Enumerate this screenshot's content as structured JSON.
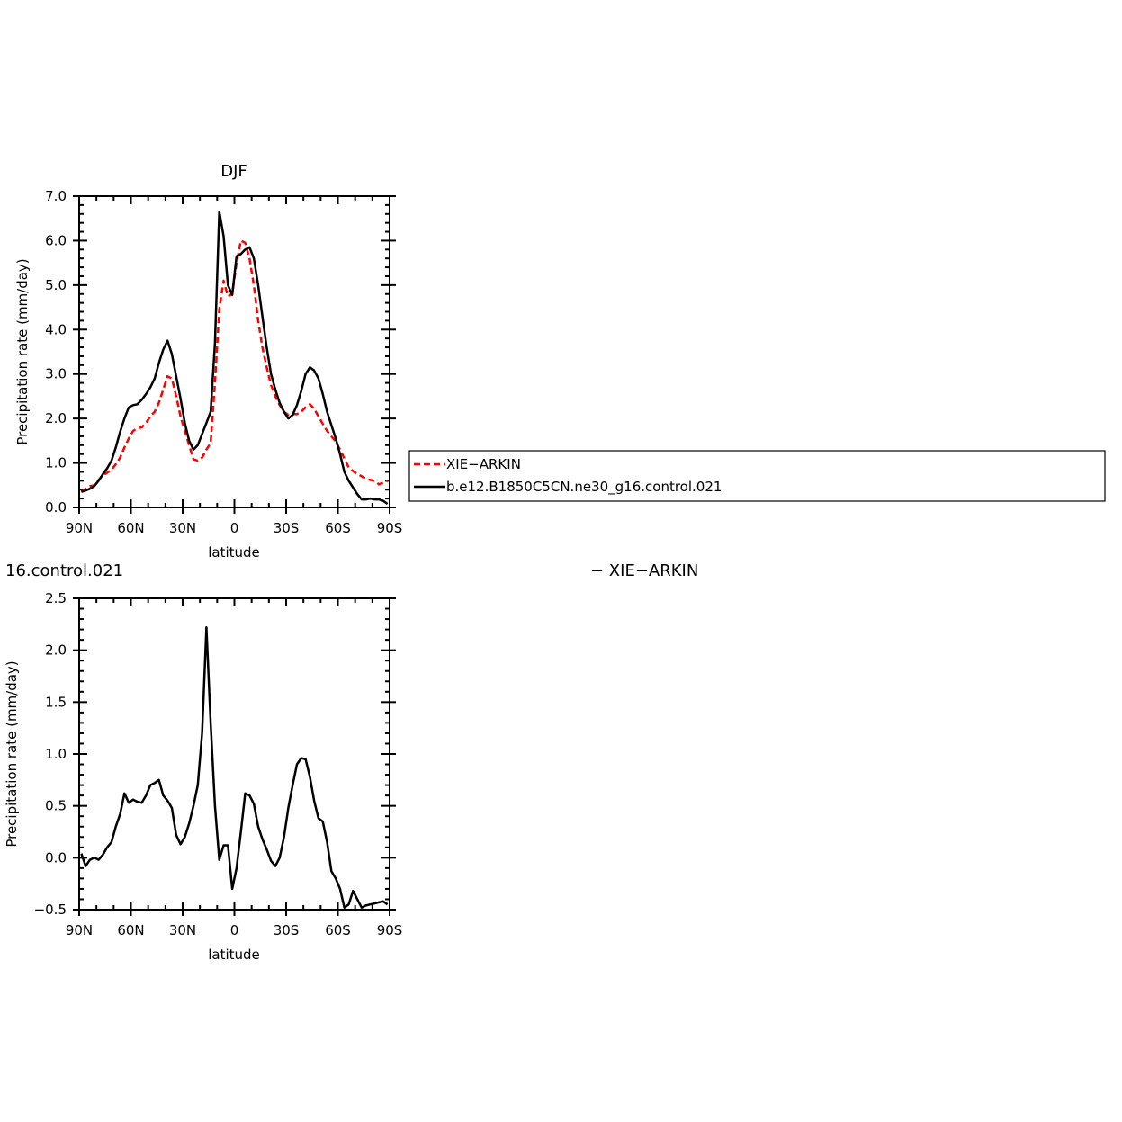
{
  "chart_data": [
    {
      "type": "line",
      "title": "DJF",
      "xlabel": "latitude",
      "ylabel": "Precipitation rate (mm/day)",
      "xlim": [
        -90,
        90
      ],
      "ylim": [
        0,
        7
      ],
      "x_ticks": [
        -90,
        -60,
        -30,
        0,
        30,
        60,
        90
      ],
      "x_tick_labels": [
        "90N",
        "60N",
        "30N",
        "0",
        "30S",
        "60S",
        "90S"
      ],
      "y_ticks": [
        0,
        1,
        2,
        3,
        4,
        5,
        6,
        7
      ],
      "y_tick_labels": [
        "0.0",
        "1.0",
        "2.0",
        "3.0",
        "4.0",
        "5.0",
        "6.0",
        "7.0"
      ],
      "legend": "right",
      "series": [
        {
          "name": "XIE−ARKIN",
          "color": "#ff0000",
          "dash": "dashed",
          "x": [
            -88.75,
            -86.25,
            -83.75,
            -81.25,
            -78.75,
            -76.25,
            -73.75,
            -71.25,
            -68.75,
            -66.25,
            -63.75,
            -61.25,
            -58.75,
            -56.25,
            -53.75,
            -51.25,
            -48.75,
            -46.25,
            -43.75,
            -41.25,
            -38.75,
            -36.25,
            -33.75,
            -31.25,
            -28.75,
            -26.25,
            -23.75,
            -21.25,
            -18.75,
            -16.25,
            -13.75,
            -11.25,
            -8.75,
            -6.25,
            -3.75,
            -1.25,
            1.25,
            3.75,
            6.25,
            8.75,
            11.25,
            13.75,
            16.25,
            18.75,
            21.25,
            23.75,
            26.25,
            28.75,
            31.25,
            33.75,
            36.25,
            38.75,
            41.25,
            43.75,
            46.25,
            48.75,
            51.25,
            53.75,
            56.25,
            58.75,
            61.25,
            63.75,
            66.25,
            68.75,
            71.25,
            73.75,
            76.25,
            78.75,
            81.25,
            83.75,
            86.25,
            88.75
          ],
          "values": [
            0.35,
            0.42,
            0.48,
            0.5,
            0.62,
            0.72,
            0.78,
            0.85,
            0.97,
            1.12,
            1.35,
            1.55,
            1.72,
            1.78,
            1.8,
            1.9,
            2.05,
            2.15,
            2.35,
            2.65,
            2.95,
            2.9,
            2.5,
            2.05,
            1.72,
            1.4,
            1.08,
            1.05,
            1.12,
            1.3,
            1.45,
            2.8,
            4.45,
            5.1,
            4.75,
            4.8,
            5.5,
            6.0,
            5.95,
            5.6,
            5.0,
            4.2,
            3.6,
            3.15,
            2.75,
            2.5,
            2.3,
            2.15,
            2.08,
            2.1,
            2.1,
            2.15,
            2.25,
            2.32,
            2.22,
            2.05,
            1.88,
            1.72,
            1.6,
            1.48,
            1.3,
            1.1,
            0.9,
            0.82,
            0.75,
            0.7,
            0.65,
            0.62,
            0.6,
            0.52,
            0.55,
            0.6
          ]
        },
        {
          "name": "b.e12.B1850C5CN.ne30_g16.control.021",
          "color": "#000000",
          "dash": "solid",
          "x": [
            -88.75,
            -86.25,
            -83.75,
            -81.25,
            -78.75,
            -76.25,
            -73.75,
            -71.25,
            -68.75,
            -66.25,
            -63.75,
            -61.25,
            -58.75,
            -56.25,
            -53.75,
            -51.25,
            -48.75,
            -46.25,
            -43.75,
            -41.25,
            -38.75,
            -36.25,
            -33.75,
            -31.25,
            -28.75,
            -26.25,
            -23.75,
            -21.25,
            -18.75,
            -16.25,
            -13.75,
            -11.25,
            -8.75,
            -6.25,
            -3.75,
            -1.25,
            1.25,
            3.75,
            6.25,
            8.75,
            11.25,
            13.75,
            16.25,
            18.75,
            21.25,
            23.75,
            26.25,
            28.75,
            31.25,
            33.75,
            36.25,
            38.75,
            41.25,
            43.75,
            46.25,
            48.75,
            51.25,
            53.75,
            56.25,
            58.75,
            61.25,
            63.75,
            66.25,
            68.75,
            71.25,
            73.75,
            76.25,
            78.75,
            81.25,
            83.75,
            86.25,
            88.75
          ],
          "values": [
            0.35,
            0.38,
            0.42,
            0.48,
            0.6,
            0.75,
            0.88,
            1.05,
            1.35,
            1.7,
            2.0,
            2.25,
            2.3,
            2.32,
            2.42,
            2.55,
            2.7,
            2.9,
            3.25,
            3.55,
            3.75,
            3.45,
            2.95,
            2.45,
            1.9,
            1.5,
            1.3,
            1.4,
            1.65,
            1.9,
            2.15,
            3.7,
            6.65,
            6.1,
            5.0,
            4.78,
            5.65,
            5.7,
            5.8,
            5.85,
            5.6,
            5.0,
            4.3,
            3.6,
            3.0,
            2.65,
            2.35,
            2.15,
            2.0,
            2.08,
            2.3,
            2.62,
            3.0,
            3.15,
            3.08,
            2.9,
            2.55,
            2.15,
            1.85,
            1.55,
            1.2,
            0.8,
            0.6,
            0.45,
            0.3,
            0.18,
            0.18,
            0.2,
            0.18,
            0.18,
            0.15,
            0.08
          ]
        }
      ]
    },
    {
      "type": "line",
      "title_fragment": "16.control.021",
      "title_fragment_right": "− XIE−ARKIN",
      "xlabel": "latitude",
      "ylabel": "Precipitation rate (mm/day)",
      "xlim": [
        -90,
        90
      ],
      "ylim": [
        -0.5,
        2.5
      ],
      "x_ticks": [
        -90,
        -60,
        -30,
        0,
        30,
        60,
        90
      ],
      "x_tick_labels": [
        "90N",
        "60N",
        "30N",
        "0",
        "30S",
        "60S",
        "90S"
      ],
      "y_ticks": [
        -0.5,
        0,
        0.5,
        1.0,
        1.5,
        2.0,
        2.5
      ],
      "y_tick_labels": [
        "−0.5",
        "0.0",
        "0.5",
        "1.0",
        "1.5",
        "2.0",
        "2.5"
      ],
      "series": [
        {
          "color": "#000000",
          "dash": "solid",
          "x": [
            -88.75,
            -86.25,
            -83.75,
            -81.25,
            -78.75,
            -76.25,
            -73.75,
            -71.25,
            -68.75,
            -66.25,
            -63.75,
            -61.25,
            -58.75,
            -56.25,
            -53.75,
            -51.25,
            -48.75,
            -46.25,
            -43.75,
            -41.25,
            -38.75,
            -36.25,
            -33.75,
            -31.25,
            -28.75,
            -26.25,
            -23.75,
            -21.25,
            -18.75,
            -16.25,
            -13.75,
            -11.25,
            -8.75,
            -6.25,
            -3.75,
            -1.25,
            1.25,
            3.75,
            6.25,
            8.75,
            11.25,
            13.75,
            16.25,
            18.75,
            21.25,
            23.75,
            26.25,
            28.75,
            31.25,
            33.75,
            36.25,
            38.75,
            41.25,
            43.75,
            46.25,
            48.75,
            51.25,
            53.75,
            56.25,
            58.75,
            61.25,
            63.75,
            66.25,
            68.75,
            71.25,
            73.75,
            76.25,
            78.75,
            81.25,
            83.75,
            86.25,
            88.75
          ],
          "values": [
            0.04,
            -0.08,
            -0.02,
            0.0,
            -0.02,
            0.03,
            0.1,
            0.15,
            0.3,
            0.42,
            0.62,
            0.53,
            0.56,
            0.54,
            0.53,
            0.6,
            0.7,
            0.72,
            0.75,
            0.6,
            0.55,
            0.48,
            0.22,
            0.13,
            0.2,
            0.33,
            0.5,
            0.7,
            1.2,
            2.22,
            1.3,
            0.5,
            -0.02,
            0.12,
            0.12,
            -0.3,
            -0.1,
            0.25,
            0.62,
            0.6,
            0.52,
            0.3,
            0.18,
            0.08,
            -0.03,
            -0.08,
            0.0,
            0.2,
            0.48,
            0.7,
            0.9,
            0.96,
            0.95,
            0.78,
            0.55,
            0.38,
            0.35,
            0.15,
            -0.13,
            -0.2,
            -0.3,
            -0.48,
            -0.45,
            -0.32,
            -0.4,
            -0.48,
            -0.46,
            -0.45,
            -0.44,
            -0.43,
            -0.42,
            -0.45
          ]
        }
      ]
    }
  ]
}
